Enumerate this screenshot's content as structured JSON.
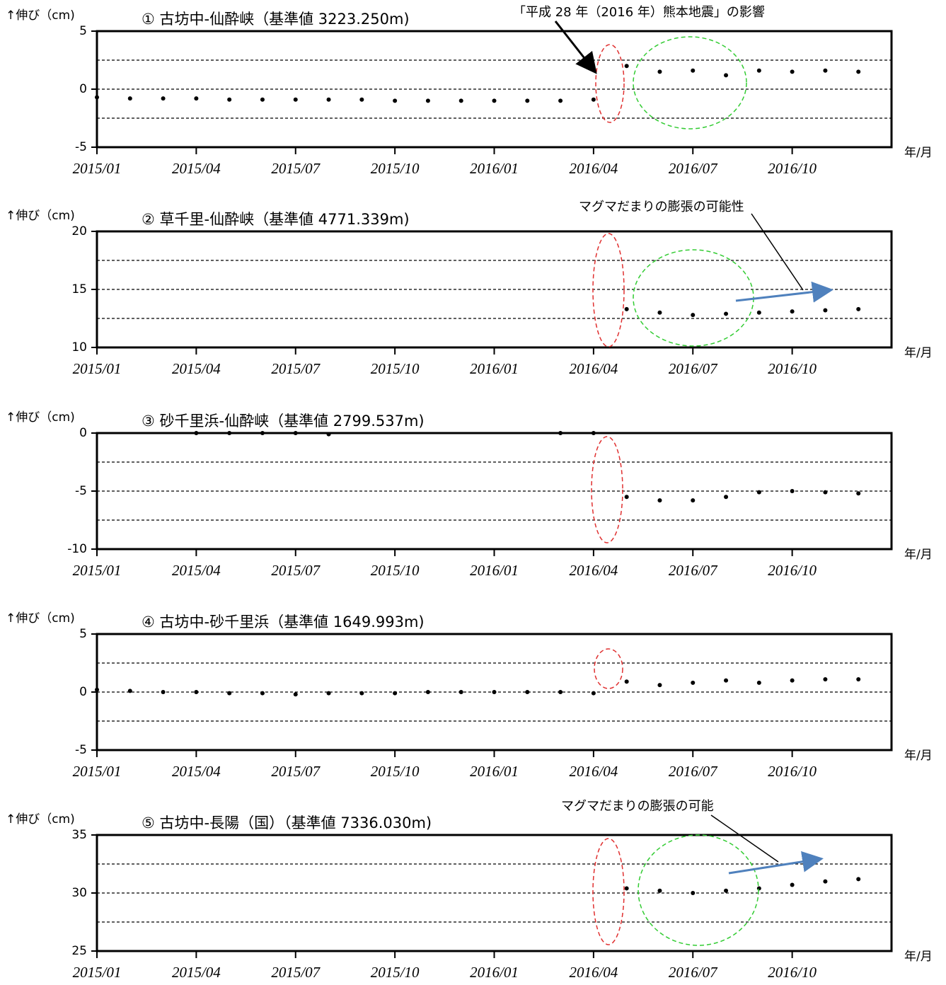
{
  "chart_data": [
    {
      "type": "scatter",
      "title": "① 古坊中-仙酔峡（基準値 3223.250m)",
      "ylabel": "↑伸び（cm)",
      "xlabel": "年/月",
      "annotation": "「平成 28 年（2016 年）熊本地震」の影響",
      "x": [
        "2015/01",
        "2015/02",
        "2015/03",
        "2015/04",
        "2015/05",
        "2015/06",
        "2015/07",
        "2015/08",
        "2015/09",
        "2015/10",
        "2015/11",
        "2015/12",
        "2016/01",
        "2016/02",
        "2016/03",
        "2016/04",
        "2016/05",
        "2016/06",
        "2016/07",
        "2016/08",
        "2016/09",
        "2016/10",
        "2016/11",
        "2016/12"
      ],
      "values": [
        -0.7,
        -0.8,
        -0.8,
        -0.8,
        -0.9,
        -0.9,
        -0.9,
        -0.9,
        -0.9,
        -1.0,
        -1.0,
        -1.0,
        -1.0,
        -1.0,
        -1.0,
        -0.9,
        2.0,
        1.5,
        1.6,
        1.2,
        1.6,
        1.5,
        1.6,
        1.5
      ],
      "color": "#000000",
      "xlim": [
        "2015/01",
        "2017/01"
      ],
      "xticks": [
        "2015/01",
        "2015/04",
        "2015/07",
        "2015/10",
        "2016/01",
        "2016/04",
        "2016/07",
        "2016/10"
      ],
      "ylim": [
        -5,
        5
      ],
      "yticks": [
        -5,
        0,
        5
      ],
      "grid_lines": [
        -2.5,
        0,
        2.5
      ]
    },
    {
      "type": "scatter",
      "title": "② 草千里-仙酔峡（基準値 4771.339m)",
      "ylabel": "↑伸び（cm)",
      "xlabel": "年/月",
      "annotation": "マグマだまりの膨張の可能性",
      "x": [
        "2015/01",
        "2015/02",
        "2015/03",
        "2015/04",
        "2015/05",
        "2015/06",
        "2015/07",
        "2015/08",
        "2015/09",
        "2015/10",
        "2015/11",
        "2015/12",
        "2016/01",
        "2016/02",
        "2016/03",
        "2016/04",
        "2016/05",
        "2016/06",
        "2016/07",
        "2016/08",
        "2016/09",
        "2016/10",
        "2016/11",
        "2016/12"
      ],
      "values": [
        null,
        null,
        null,
        null,
        null,
        null,
        null,
        null,
        null,
        null,
        null,
        null,
        null,
        null,
        null,
        null,
        13.3,
        13.0,
        12.8,
        12.9,
        13.0,
        13.1,
        13.2,
        13.3
      ],
      "color": "#000000",
      "xlim": [
        "2015/01",
        "2017/01"
      ],
      "xticks": [
        "2015/01",
        "2015/04",
        "2015/07",
        "2015/10",
        "2016/01",
        "2016/04",
        "2016/07",
        "2016/10"
      ],
      "ylim": [
        10,
        20
      ],
      "yticks": [
        10,
        15,
        20
      ],
      "grid_lines": [
        12.5,
        15,
        17.5
      ]
    },
    {
      "type": "scatter",
      "title": "③ 砂千里浜-仙酔峡（基準値 2799.537m)",
      "ylabel": "↑伸び（cm)",
      "xlabel": "年/月",
      "x": [
        "2015/01",
        "2015/02",
        "2015/03",
        "2015/04",
        "2015/05",
        "2015/06",
        "2015/07",
        "2015/08",
        "2015/09",
        "2015/10",
        "2015/11",
        "2015/12",
        "2016/01",
        "2016/02",
        "2016/03",
        "2016/04",
        "2016/05",
        "2016/06",
        "2016/07",
        "2016/08",
        "2016/09",
        "2016/10",
        "2016/11",
        "2016/12"
      ],
      "values": [
        null,
        null,
        null,
        0,
        0,
        0,
        0,
        -0.1,
        null,
        null,
        null,
        null,
        null,
        null,
        0,
        0,
        -5.5,
        -5.8,
        -5.8,
        -5.5,
        -5.1,
        -5.0,
        -5.1,
        -5.2
      ],
      "color": "#000000",
      "xlim": [
        "2015/01",
        "2017/01"
      ],
      "xticks": [
        "2015/01",
        "2015/04",
        "2015/07",
        "2015/10",
        "2016/01",
        "2016/04",
        "2016/07",
        "2016/10"
      ],
      "ylim": [
        -10,
        0
      ],
      "yticks": [
        -10,
        -5,
        0
      ],
      "grid_lines": [
        -7.5,
        -5,
        -2.5
      ]
    },
    {
      "type": "scatter",
      "title": "④ 古坊中-砂千里浜（基準値 1649.993m)",
      "ylabel": "↑伸び（cm)",
      "xlabel": "年/月",
      "x": [
        "2015/01",
        "2015/02",
        "2015/03",
        "2015/04",
        "2015/05",
        "2015/06",
        "2015/07",
        "2015/08",
        "2015/09",
        "2015/10",
        "2015/11",
        "2015/12",
        "2016/01",
        "2016/02",
        "2016/03",
        "2016/04",
        "2016/05",
        "2016/06",
        "2016/07",
        "2016/08",
        "2016/09",
        "2016/10",
        "2016/11",
        "2016/12"
      ],
      "values": [
        0.2,
        0.1,
        0,
        0,
        -0.1,
        -0.1,
        -0.2,
        -0.1,
        -0.1,
        -0.1,
        0,
        0,
        0,
        0,
        0,
        -0.1,
        0.9,
        0.6,
        0.8,
        1.0,
        0.8,
        1.0,
        1.1,
        1.1
      ],
      "color": "#000000",
      "xlim": [
        "2015/01",
        "2017/01"
      ],
      "xticks": [
        "2015/01",
        "2015/04",
        "2015/07",
        "2015/10",
        "2016/01",
        "2016/04",
        "2016/07",
        "2016/10"
      ],
      "ylim": [
        -5,
        5
      ],
      "yticks": [
        -5,
        0,
        5
      ],
      "grid_lines": [
        -2.5,
        0,
        2.5
      ]
    },
    {
      "type": "scatter",
      "title": "⑤ 古坊中-長陽（国）（基準値 7336.030m)",
      "ylabel": "↑伸び（cm)",
      "xlabel": "年/月",
      "annotation": "マグマだまりの膨張の可能",
      "x": [
        "2015/01",
        "2015/02",
        "2015/03",
        "2015/04",
        "2015/05",
        "2015/06",
        "2015/07",
        "2015/08",
        "2015/09",
        "2015/10",
        "2015/11",
        "2015/12",
        "2016/01",
        "2016/02",
        "2016/03",
        "2016/04",
        "2016/05",
        "2016/06",
        "2016/07",
        "2016/08",
        "2016/09",
        "2016/10",
        "2016/11",
        "2016/12"
      ],
      "values": [
        null,
        null,
        null,
        null,
        null,
        null,
        null,
        null,
        null,
        null,
        null,
        null,
        null,
        null,
        null,
        null,
        30.4,
        30.2,
        30.0,
        30.2,
        30.4,
        30.7,
        31.0,
        31.2
      ],
      "color": "#000000",
      "xlim": [
        "2015/01",
        "2017/01"
      ],
      "xticks": [
        "2015/01",
        "2015/04",
        "2015/07",
        "2015/10",
        "2016/01",
        "2016/04",
        "2016/07",
        "2016/10"
      ],
      "ylim": [
        25,
        35
      ],
      "yticks": [
        25,
        30,
        35
      ],
      "grid_lines": [
        27.5,
        30,
        32.5
      ]
    }
  ]
}
